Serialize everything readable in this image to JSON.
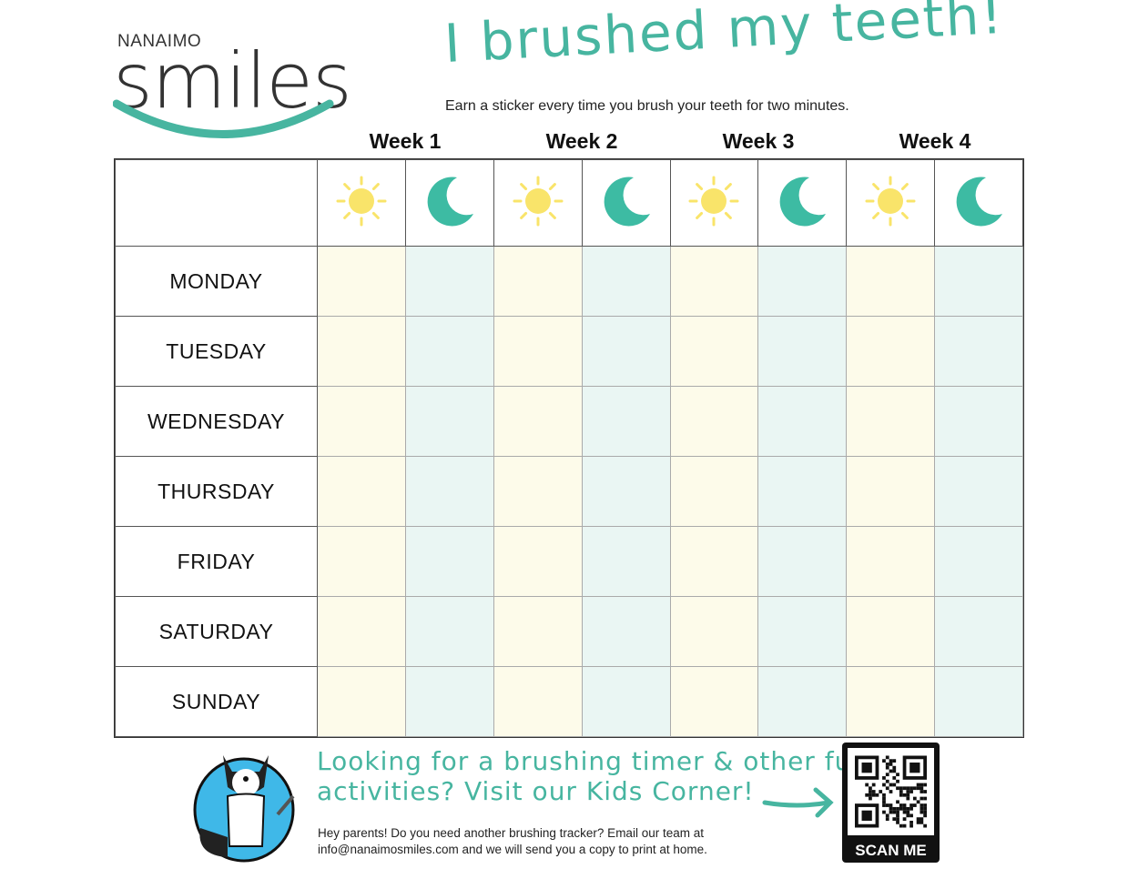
{
  "logo": {
    "top_text": "NANAIMO",
    "main_text": "smiles",
    "brand_color": "#47b5a0"
  },
  "title": "I brushed my teeth!",
  "subtitle": "Earn a sticker every time you brush your teeth for two minutes.",
  "weeks": [
    "Week 1",
    "Week 2",
    "Week 3",
    "Week 4"
  ],
  "header_icons": [
    "sun-icon",
    "moon-icon"
  ],
  "days": [
    "MONDAY",
    "TUESDAY",
    "WEDNESDAY",
    "THURSDAY",
    "FRIDAY",
    "SATURDAY",
    "SUNDAY"
  ],
  "colors": {
    "sun": "#f9e46a",
    "moon": "#3dbba3",
    "morning_cell": "#fdfbea",
    "night_cell": "#eaf6f3"
  },
  "promo": {
    "line1": "Looking for a brushing timer & other fun",
    "line2": "activities? Visit our Kids Corner!"
  },
  "parents": {
    "line1": "Hey parents! Do you need another brushing tracker? Email our team at",
    "line2": "info@nanaimosmiles.com and we will send you a copy to print at home."
  },
  "qr": {
    "label": "SCAN ME"
  }
}
